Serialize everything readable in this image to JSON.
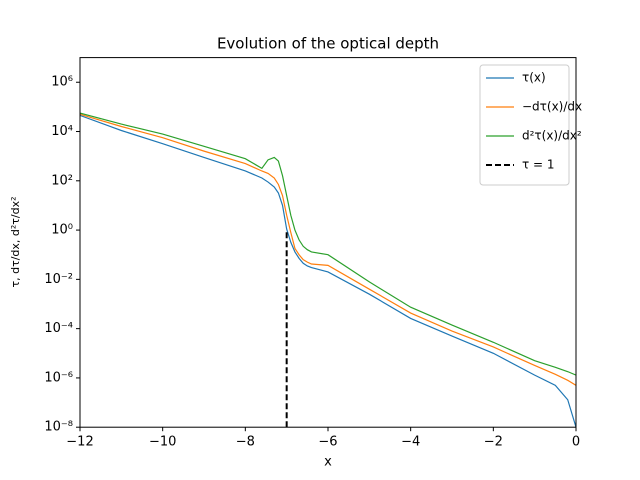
{
  "chart_data": {
    "type": "line",
    "title": "Evolution of the optical depth",
    "x_label": "x",
    "y_label": "τ, dτ/dx, d²τ/dx²",
    "x": [
      -12,
      -11,
      -10,
      -9,
      -8,
      -7.6,
      -7.45,
      -7.3,
      -7.2,
      -7.1,
      -7,
      -6.9,
      -6.8,
      -6.7,
      -6.6,
      -6.5,
      -6.4,
      -6,
      -5,
      -4,
      -3,
      -2,
      -1,
      -0.5,
      -0.2,
      0
    ],
    "series": [
      {
        "name": "τ(x)",
        "color": "#1f77b4",
        "values": [
          45000,
          11000,
          3200,
          890,
          250,
          130,
          89,
          56,
          32,
          10,
          1.1,
          0.32,
          0.13,
          0.071,
          0.045,
          0.035,
          0.03,
          0.02,
          0.0025,
          0.00026,
          5e-05,
          1e-05,
          1.3e-06,
          5e-07,
          1.3e-07,
          1e-08
        ]
      },
      {
        "name": "−dτ(x)/dx",
        "color": "#ff7f0e",
        "values": [
          50000,
          16000,
          5600,
          1600,
          500,
          250,
          200,
          130,
          71,
          25,
          4,
          0.8,
          0.18,
          0.1,
          0.063,
          0.05,
          0.042,
          0.037,
          0.004,
          0.00043,
          8e-05,
          1.8e-05,
          3.2e-06,
          1.4e-06,
          8e-07,
          5e-07
        ]
      },
      {
        "name": "d²τ(x)/dx²",
        "color": "#2ca02c",
        "values": [
          56000,
          20000,
          7900,
          2500,
          790,
          320,
          710,
          890,
          630,
          160,
          25,
          4,
          1,
          0.4,
          0.22,
          0.16,
          0.13,
          0.1,
          0.0079,
          0.00074,
          0.00014,
          2.8e-05,
          5e-06,
          2.7e-06,
          1.8e-06,
          1.3e-06
        ]
      },
      {
        "name": "τ = 1",
        "color": "#000000",
        "dashed": true,
        "x": [
          -7,
          -7
        ],
        "values": [
          1e-08,
          1
        ]
      }
    ],
    "xlim": [
      -12,
      0
    ],
    "ylim": [
      1e-08,
      10000000
    ],
    "log_y": true,
    "xticks": [
      {
        "value": -12,
        "label": "−12"
      },
      {
        "value": -10,
        "label": "−10"
      },
      {
        "value": -8,
        "label": "−8"
      },
      {
        "value": -6,
        "label": "−6"
      },
      {
        "value": -4,
        "label": "−4"
      },
      {
        "value": -2,
        "label": "−2"
      },
      0
    ],
    "yticks": [
      {
        "value": 1e-08,
        "label": "10⁻⁸"
      },
      {
        "value": 1e-06,
        "label": "10⁻⁶"
      },
      {
        "value": 0.0001,
        "label": "10⁻⁴"
      },
      {
        "value": 0.01,
        "label": "10⁻²"
      },
      {
        "value": 1,
        "label": "10⁰"
      },
      {
        "value": 100,
        "label": "10²"
      },
      {
        "value": 10000,
        "label": "10⁴"
      },
      {
        "value": 1000000,
        "label": "10⁶"
      }
    ],
    "legend": "upper right"
  }
}
